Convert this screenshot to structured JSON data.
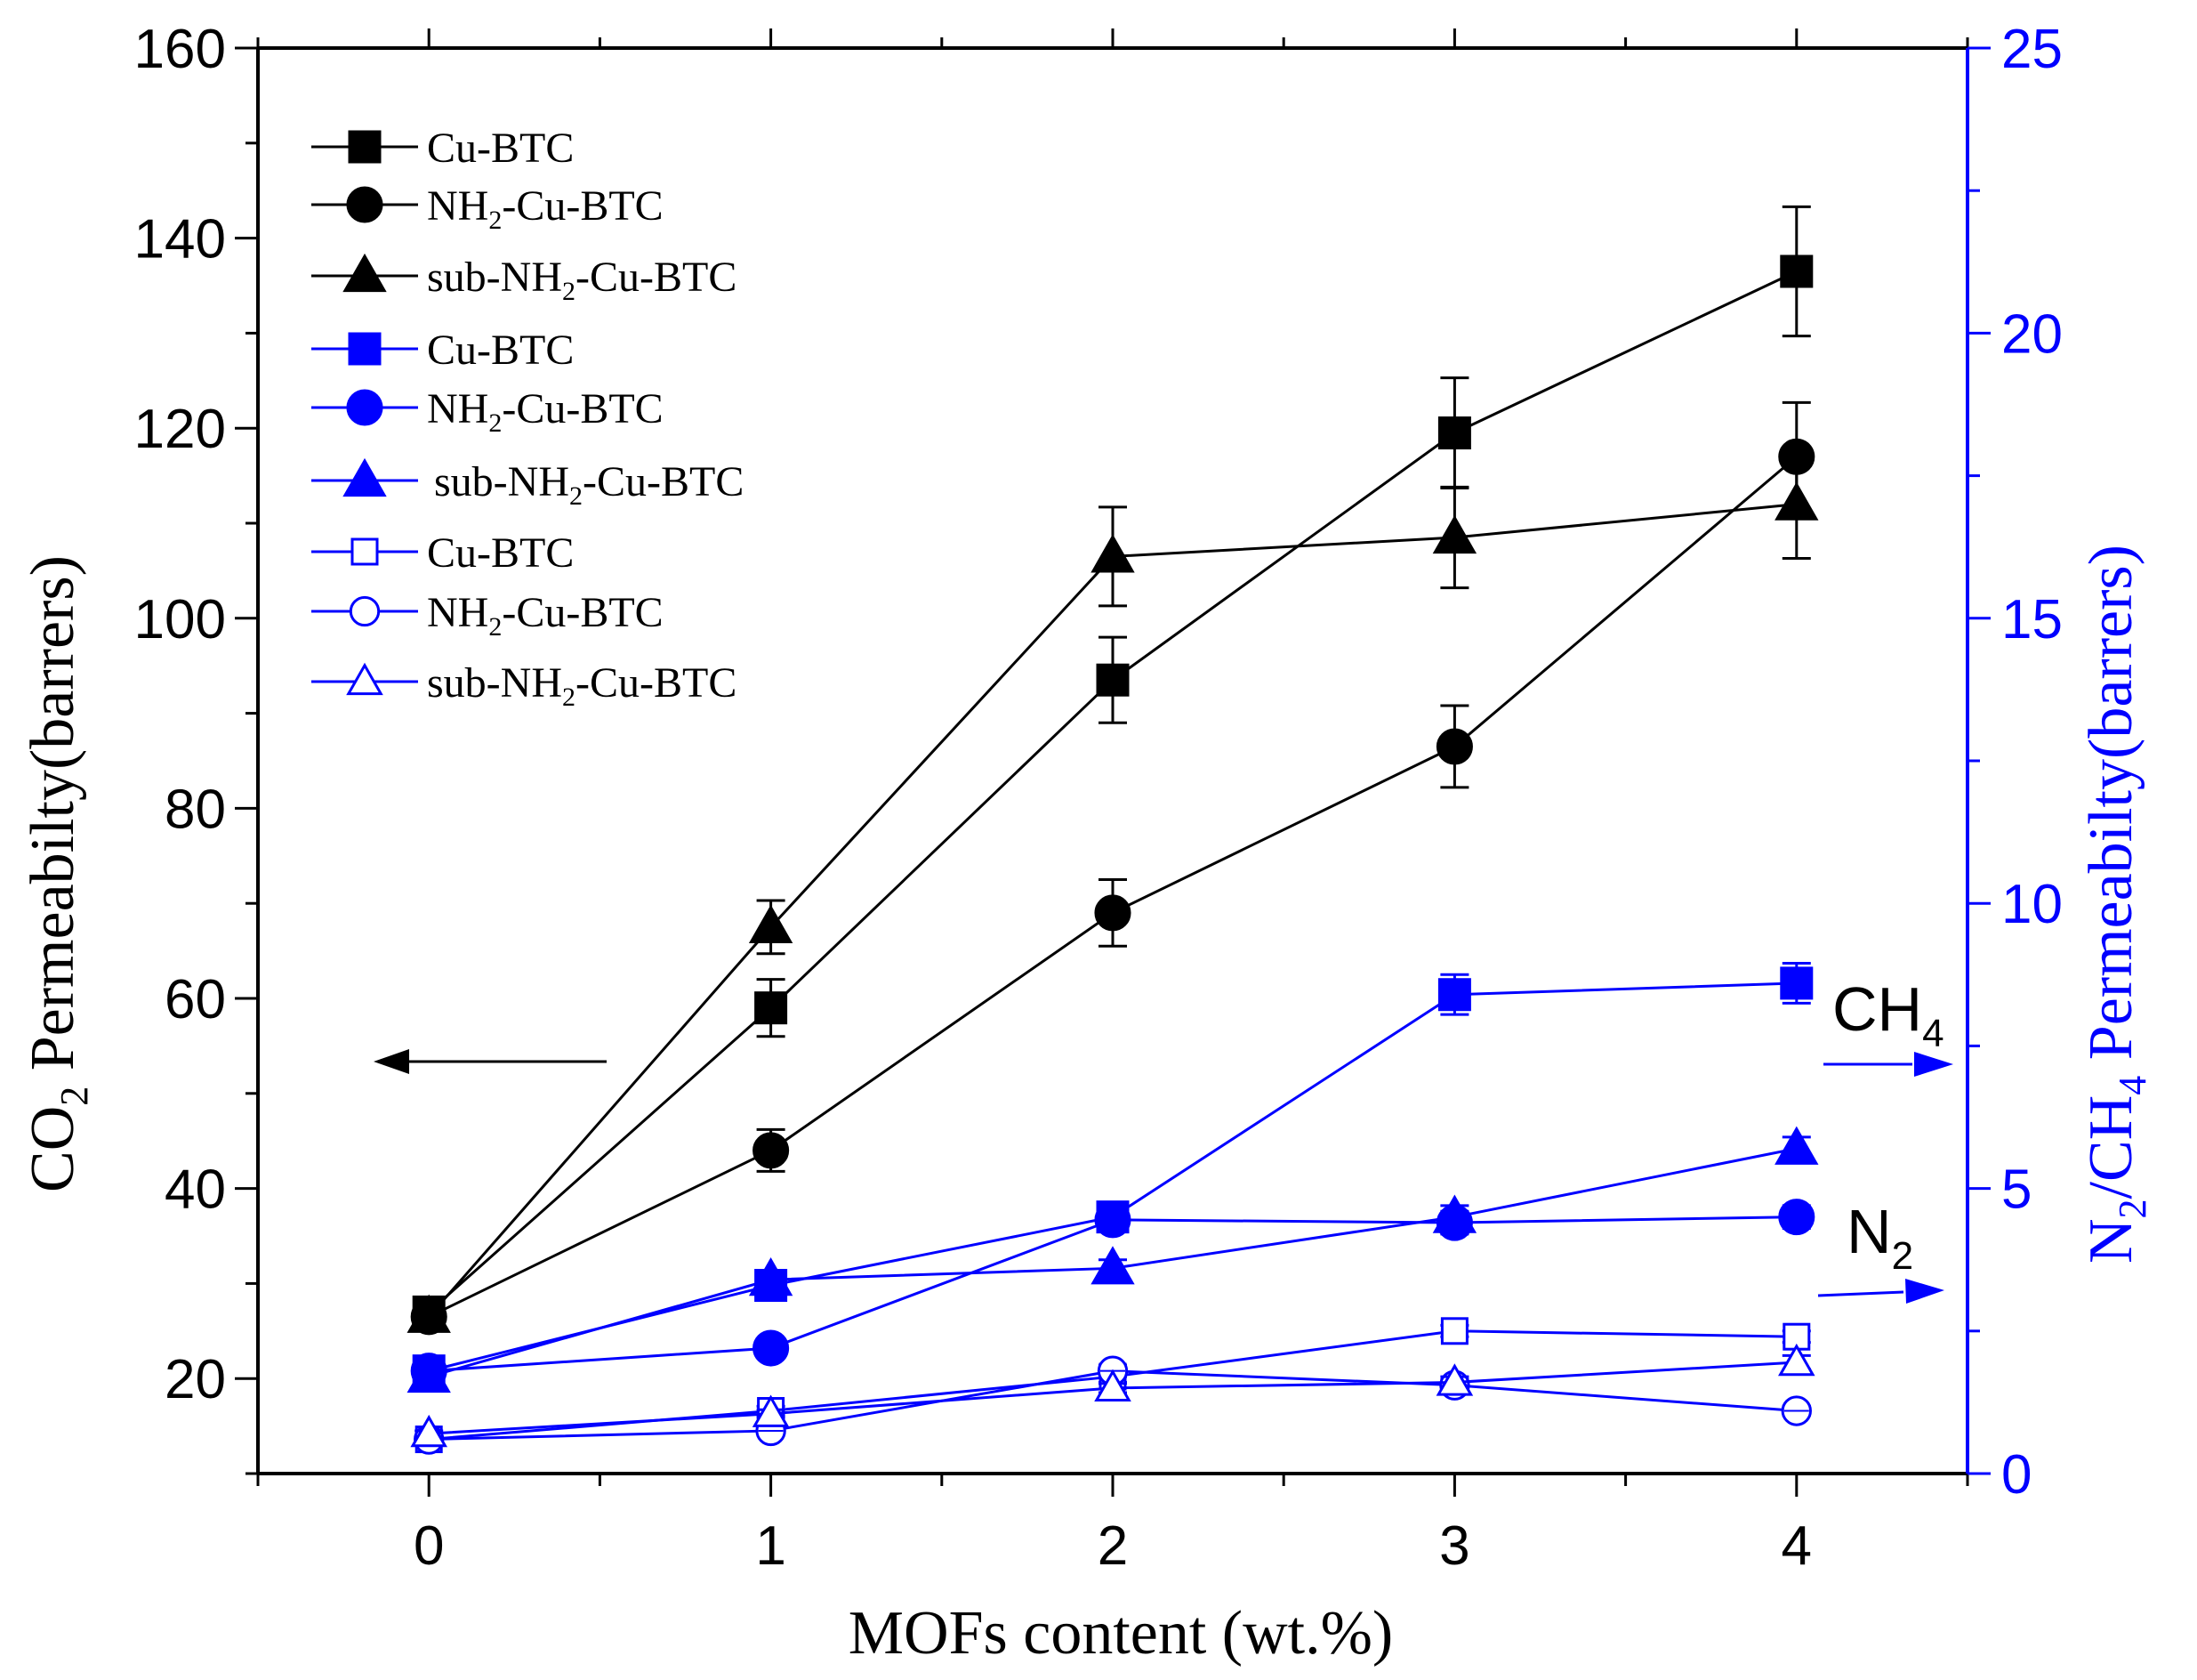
{
  "colors": {
    "black": "#000000",
    "blue": "#0000ff"
  },
  "chart_data": {
    "type": "line",
    "x": [
      0,
      1,
      2,
      3,
      4
    ],
    "xlabel": "MOFs content (wt.%)",
    "xlim": [
      -0.5,
      4.5
    ],
    "xticks": [
      "0",
      "1",
      "2",
      "3",
      "4"
    ],
    "ylabel_left": {
      "prefix": "CO",
      "sub": "2",
      "suffix": " Permeabilty(barrers)"
    },
    "ylim_left": [
      10,
      160
    ],
    "yticks_left": [
      "20",
      "40",
      "60",
      "80",
      "100",
      "120",
      "140",
      "160"
    ],
    "ylabel_right": {
      "a": "N",
      "sub1": "2",
      "b": "/CH",
      "sub2": "4",
      "c": " Permeabilty(barrers)"
    },
    "ylim_right": [
      0,
      25
    ],
    "yticks_right": [
      "0",
      "5",
      "10",
      "15",
      "20",
      "25"
    ],
    "series": [
      {
        "name": "Cu-BTC",
        "label": {
          "pre": "Cu-BTC",
          "sub": "",
          "post": ""
        },
        "gas": "CO2",
        "axis": "left",
        "color": "#000000",
        "marker": "square",
        "filled": true,
        "values": [
          27,
          59,
          93.5,
          119.5,
          136.5
        ],
        "errors": [
          1.2,
          3,
          4.5,
          5.8,
          6.8
        ]
      },
      {
        "name": "NH2-Cu-BTC",
        "label": {
          "pre": "NH",
          "sub": "2",
          "post": "-Cu-BTC"
        },
        "gas": "CO2",
        "axis": "left",
        "color": "#000000",
        "marker": "circle",
        "filled": true,
        "values": [
          26.5,
          44,
          69,
          86.5,
          117
        ],
        "errors": [
          1.2,
          2.2,
          3.5,
          4.3,
          5.7
        ]
      },
      {
        "name": "sub-NH2-Cu-BTC",
        "label": {
          "pre": "sub-NH",
          "sub": "2",
          "post": "-Cu-BTC"
        },
        "gas": "CO2",
        "axis": "left",
        "color": "#000000",
        "marker": "triangle",
        "filled": true,
        "values": [
          26.5,
          67.5,
          106.5,
          108.5,
          112
        ],
        "errors": [
          1.2,
          2.8,
          5.2,
          5.3,
          5.7
        ]
      },
      {
        "name": "Cu-BTC",
        "label": {
          "pre": "Cu-BTC",
          "sub": "",
          "post": ""
        },
        "gas": "CH4",
        "axis": "right",
        "color": "#0000ff",
        "marker": "square",
        "filled": true,
        "values": [
          1.8,
          3.3,
          4.5,
          8.4,
          8.6
        ],
        "errors": [
          0.1,
          0.15,
          0.2,
          0.35,
          0.35
        ]
      },
      {
        "name": "NH2-Cu-BTC",
        "label": {
          "pre": "NH",
          "sub": "2",
          "post": "-Cu-BTC"
        },
        "gas": "CH4",
        "axis": "right",
        "color": "#0000ff",
        "marker": "circle",
        "filled": true,
        "values": [
          1.8,
          2.2,
          4.45,
          4.4,
          4.5
        ],
        "errors": [
          0.1,
          0.1,
          0.15,
          0.2,
          0.2
        ]
      },
      {
        "name": "sub-NH2-Cu-BTC",
        "label": {
          "pre": "sub-NH",
          "sub": "2",
          "post": "-Cu-BTC"
        },
        "gas": "CH4",
        "axis": "right",
        "color": "#0000ff",
        "marker": "triangle",
        "filled": true,
        "values": [
          1.7,
          3.4,
          3.6,
          4.5,
          5.7
        ],
        "errors": [
          0.1,
          0.15,
          0.15,
          0.2,
          0.2
        ]
      },
      {
        "name": "Cu-BTC",
        "label": {
          "pre": "Cu-BTC",
          "sub": "",
          "post": ""
        },
        "gas": "N2",
        "axis": "right",
        "color": "#0000ff",
        "marker": "square",
        "filled": false,
        "values": [
          0.6,
          1.1,
          1.7,
          2.5,
          2.4
        ],
        "errors": [
          0.05,
          0.08,
          0.1,
          0.1,
          0.1
        ]
      },
      {
        "name": "NH2-Cu-BTC",
        "label": {
          "pre": "NH",
          "sub": "2",
          "post": "-Cu-BTC"
        },
        "gas": "N2",
        "axis": "right",
        "color": "#0000ff",
        "marker": "circle",
        "filled": false,
        "values": [
          0.6,
          0.75,
          1.8,
          1.55,
          1.1
        ],
        "errors": [
          0.05,
          0.05,
          0.1,
          0.1,
          0.08
        ]
      },
      {
        "name": "sub-NH2-Cu-BTC",
        "label": {
          "pre": "sub-NH",
          "sub": "2",
          "post": "-Cu-BTC"
        },
        "gas": "N2",
        "axis": "right",
        "color": "#0000ff",
        "marker": "triangle",
        "filled": false,
        "values": [
          0.7,
          1.05,
          1.5,
          1.6,
          1.95
        ],
        "errors": [
          0.05,
          0.07,
          0.08,
          0.1,
          0.12
        ]
      }
    ],
    "annotations": {
      "ch4": {
        "text": "CH",
        "sub": "4"
      },
      "n2": {
        "text": "N",
        "sub": "2"
      }
    }
  }
}
